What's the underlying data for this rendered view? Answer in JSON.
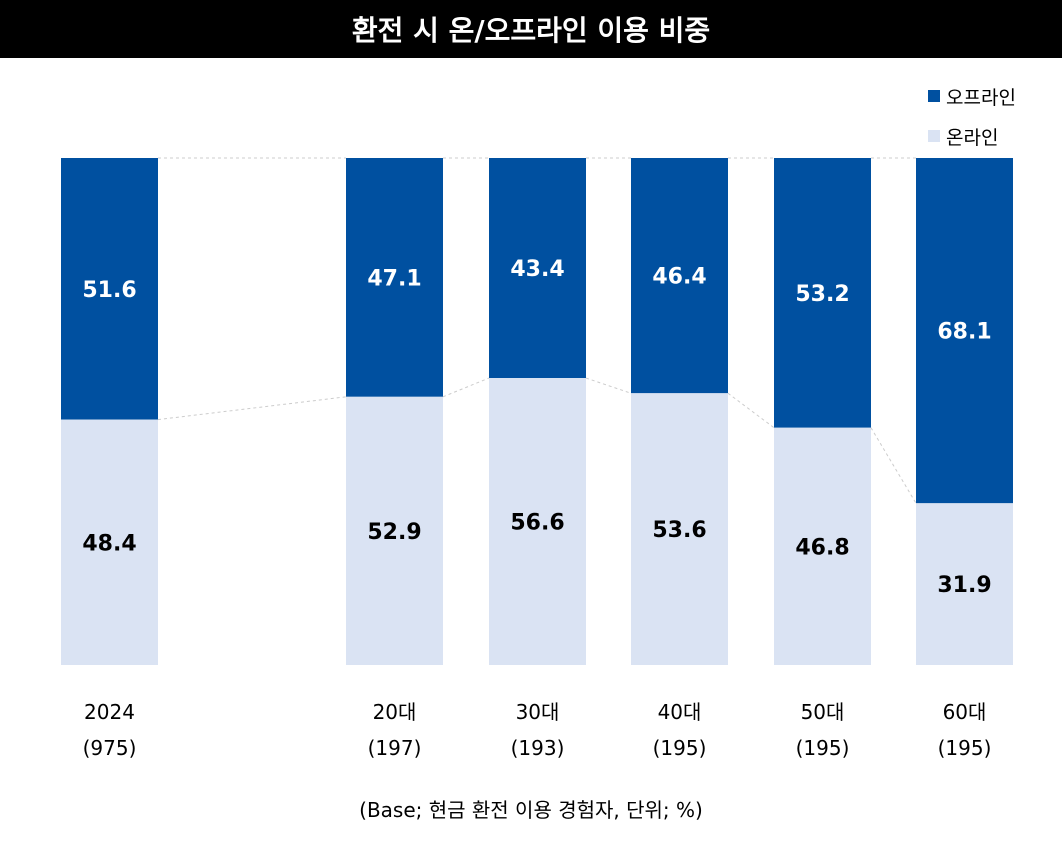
{
  "title": "환전 시 온/오프라인 이용 비중",
  "footnote": "(Base; 현금 환전 이용 경험자, 단위; %)",
  "chart_data": {
    "type": "bar",
    "stacked": true,
    "percent_stacked": true,
    "categories": [
      "2024",
      "20대",
      "30대",
      "40대",
      "50대",
      "60대"
    ],
    "bases": [
      "(975)",
      "(197)",
      "(193)",
      "(195)",
      "(195)",
      "(195)"
    ],
    "series": [
      {
        "name": "오프라인",
        "color": "#0050A0",
        "values": [
          51.6,
          47.1,
          43.4,
          46.4,
          53.2,
          68.1
        ],
        "labels": [
          "51.6",
          "47.1",
          "43.4",
          "46.4",
          "53.2",
          "68.1"
        ]
      },
      {
        "name": "온라인",
        "color": "#DAE3F3",
        "values": [
          48.4,
          52.9,
          56.6,
          53.6,
          46.8,
          31.9
        ],
        "labels": [
          "48.4",
          "52.9",
          "56.6",
          "53.6",
          "46.8",
          "31.9"
        ]
      }
    ],
    "ylim": [
      0,
      100
    ],
    "legend": "top-right",
    "grid": false,
    "connector_lines": "dashed"
  }
}
